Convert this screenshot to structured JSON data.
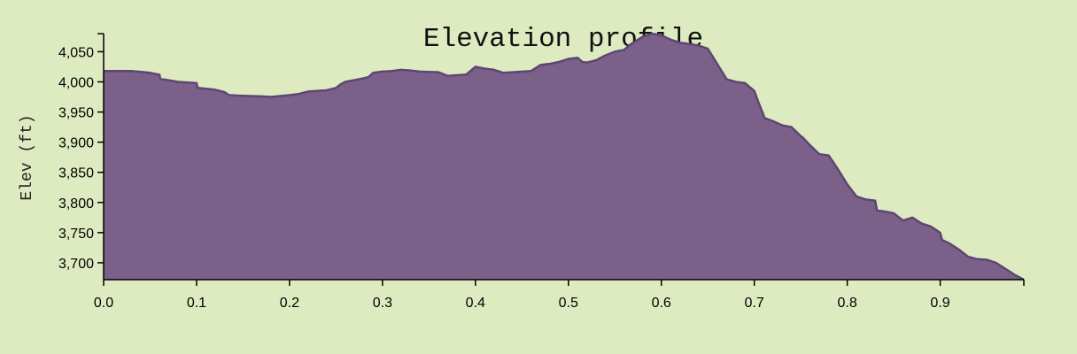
{
  "chart_data": {
    "type": "area",
    "title": "Elevation profile",
    "xlabel": "",
    "ylabel": "Elev (ft)",
    "xlim": [
      0,
      0.99
    ],
    "ylim": [
      3672,
      4080
    ],
    "x_ticks": [
      0.0,
      0.1,
      0.2,
      0.3,
      0.4,
      0.5,
      0.6,
      0.7,
      0.8,
      0.9
    ],
    "x_tick_labels": [
      "0.0",
      "0.1",
      "0.2",
      "0.3",
      "0.4",
      "0.5",
      "0.6",
      "0.7",
      "0.8",
      "0.9"
    ],
    "y_ticks": [
      3700,
      3750,
      3800,
      3850,
      3900,
      3950,
      4000,
      4050
    ],
    "y_tick_labels": [
      "3,700",
      "3,750",
      "3,800",
      "3,850",
      "3,900",
      "3,950",
      "4,000",
      "4,050"
    ],
    "grid": false,
    "colors": {
      "fill": "#7b6189",
      "stroke": "#5e4673",
      "background": "#deebc1"
    },
    "series": [
      {
        "x": [
          0.0,
          0.02,
          0.03,
          0.05,
          0.06,
          0.061,
          0.08,
          0.1,
          0.101,
          0.12,
          0.13,
          0.135,
          0.15,
          0.17,
          0.18,
          0.2,
          0.21,
          0.22,
          0.24,
          0.25,
          0.255,
          0.26,
          0.27,
          0.28,
          0.285,
          0.29,
          0.3,
          0.31,
          0.32,
          0.33,
          0.34,
          0.36,
          0.37,
          0.38,
          0.39,
          0.4,
          0.41,
          0.42,
          0.43,
          0.44,
          0.46,
          0.47,
          0.48,
          0.49,
          0.5,
          0.51,
          0.515,
          0.52,
          0.53,
          0.54,
          0.55,
          0.56,
          0.565,
          0.57,
          0.58,
          0.59,
          0.6,
          0.61,
          0.62,
          0.63,
          0.64,
          0.65,
          0.66,
          0.67,
          0.671,
          0.68,
          0.69,
          0.7,
          0.705,
          0.71,
          0.711,
          0.72,
          0.73,
          0.74,
          0.75,
          0.752,
          0.76,
          0.77,
          0.78,
          0.79,
          0.8,
          0.81,
          0.82,
          0.83,
          0.832,
          0.84,
          0.85,
          0.86,
          0.87,
          0.88,
          0.89,
          0.9,
          0.902,
          0.91,
          0.92,
          0.93,
          0.94,
          0.95,
          0.96,
          0.97,
          0.98,
          0.99
        ],
        "y": [
          4018,
          4018,
          4018,
          4015,
          4012,
          4005,
          4000,
          3998,
          3990,
          3987,
          3983,
          3978,
          3977,
          3976,
          3975,
          3978,
          3980,
          3984,
          3986,
          3990,
          3996,
          4000,
          4003,
          4006,
          4008,
          4015,
          4017,
          4018,
          4020,
          4019,
          4017,
          4016,
          4010,
          4011,
          4012,
          4025,
          4022,
          4020,
          4015,
          4016,
          4018,
          4028,
          4030,
          4033,
          4038,
          4040,
          4033,
          4032,
          4036,
          4044,
          4050,
          4053,
          4060,
          4065,
          4075,
          4080,
          4077,
          4070,
          4065,
          4063,
          4060,
          4055,
          4030,
          4005,
          4004,
          4000,
          3998,
          3985,
          3964,
          3945,
          3940,
          3935,
          3928,
          3925,
          3910,
          3908,
          3895,
          3880,
          3878,
          3855,
          3830,
          3810,
          3805,
          3803,
          3787,
          3785,
          3782,
          3770,
          3775,
          3765,
          3760,
          3750,
          3738,
          3732,
          3722,
          3710,
          3706,
          3705,
          3700,
          3690,
          3680,
          3672
        ]
      }
    ]
  }
}
